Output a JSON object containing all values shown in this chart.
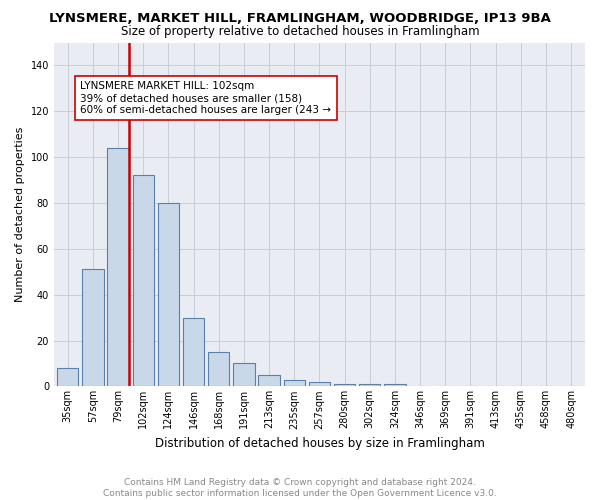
{
  "title": "LYNSMERE, MARKET HILL, FRAMLINGHAM, WOODBRIDGE, IP13 9BA",
  "subtitle": "Size of property relative to detached houses in Framlingham",
  "xlabel": "Distribution of detached houses by size in Framlingham",
  "ylabel": "Number of detached properties",
  "categories": [
    "35sqm",
    "57sqm",
    "79sqm",
    "102sqm",
    "124sqm",
    "146sqm",
    "168sqm",
    "191sqm",
    "213sqm",
    "235sqm",
    "257sqm",
    "280sqm",
    "302sqm",
    "324sqm",
    "346sqm",
    "369sqm",
    "391sqm",
    "413sqm",
    "435sqm",
    "458sqm",
    "480sqm"
  ],
  "values": [
    8,
    51,
    104,
    92,
    80,
    30,
    15,
    10,
    5,
    3,
    2,
    1,
    1,
    1,
    0,
    0,
    0,
    0,
    0,
    0,
    0
  ],
  "bar_color": "#c8d8e8",
  "bar_edge_color": "#5a7fa8",
  "marker_line_index": 2,
  "marker_line_color": "#cc0000",
  "annotation_text": "LYNSMERE MARKET HILL: 102sqm\n39% of detached houses are smaller (158)\n60% of semi-detached houses are larger (243 →",
  "annotation_box_color": "#ffffff",
  "annotation_box_edge": "#cc0000",
  "ylim": [
    0,
    150
  ],
  "yticks": [
    0,
    20,
    40,
    60,
    80,
    100,
    120,
    140
  ],
  "footer": "Contains HM Land Registry data © Crown copyright and database right 2024.\nContains public sector information licensed under the Open Government Licence v3.0.",
  "title_fontsize": 9.5,
  "subtitle_fontsize": 8.5,
  "xlabel_fontsize": 8.5,
  "ylabel_fontsize": 8,
  "tick_fontsize": 7,
  "annotation_fontsize": 7.5,
  "footer_fontsize": 6.5,
  "bar_width": 0.85
}
